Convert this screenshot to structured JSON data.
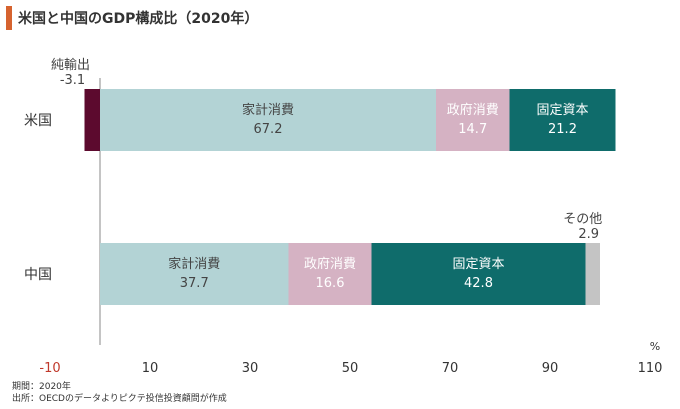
{
  "title": "米国と中国のGDP構成比（2020年）",
  "colors": {
    "accent": "#d6632f",
    "net_exports": "#5c0a2e",
    "household": "#b3d3d5",
    "government": "#d5b2c3",
    "investment": "#0f6c6b",
    "other": "#c4c4c4",
    "negative_tick": "#c0392b"
  },
  "chart_data": {
    "type": "bar",
    "orientation": "horizontal",
    "stacked": true,
    "title": "米国と中国のGDP構成比（2020年）",
    "xlabel": "%",
    "xlim": [
      -10,
      110
    ],
    "x_ticks": [
      -10,
      10,
      30,
      50,
      70,
      90,
      110
    ],
    "categories": [
      "米国",
      "中国"
    ],
    "series": [
      {
        "name": "純輸出",
        "values": [
          -3.1,
          null
        ]
      },
      {
        "name": "家計消費",
        "values": [
          67.2,
          37.7
        ]
      },
      {
        "name": "政府消費",
        "values": [
          14.7,
          16.6
        ]
      },
      {
        "name": "固定資本",
        "values": [
          21.2,
          42.8
        ]
      },
      {
        "name": "その他",
        "values": [
          null,
          2.9
        ]
      }
    ],
    "grid": false,
    "legend": "none"
  },
  "footnotes": [
    "期間：2020年",
    "出所：OECDのデータよりピクテ投信投資顧問が作成"
  ]
}
